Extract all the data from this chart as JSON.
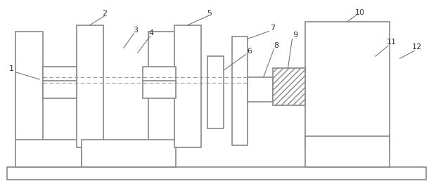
{
  "background": "#ffffff",
  "ec": "#888888",
  "ec_dark": "#555555",
  "lw": 1.2,
  "fig_width": 6.2,
  "fig_height": 2.65,
  "dpi": 100,
  "label_fs": 8,
  "label_color": "#333333",
  "leader_color": "#666666",
  "leader_lw": 0.7,
  "shaft_color": "#999999",
  "shaft_lw": 0.8,
  "hatch_color": "#888888"
}
